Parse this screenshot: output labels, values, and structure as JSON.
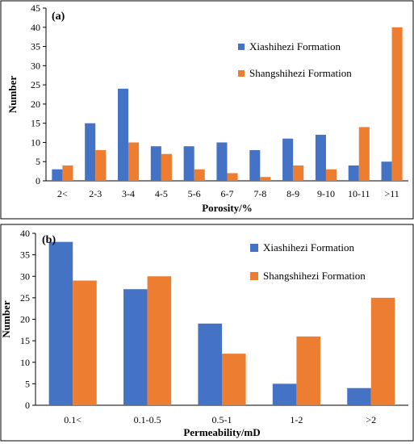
{
  "chart_data": [
    {
      "type": "bar",
      "panel_label": "(a)",
      "categories": [
        "2<",
        "2-3",
        "3-4",
        "4-5",
        "5-6",
        "6-7",
        "7-8",
        "8-9",
        "9-10",
        "10-11",
        ">11"
      ],
      "series": [
        {
          "name": "Xiashihezi Formation",
          "color": "#4472C4",
          "values": [
            3,
            15,
            24,
            9,
            9,
            10,
            8,
            11,
            12,
            4,
            5
          ]
        },
        {
          "name": "Shangshihezi Formation",
          "color": "#ED7D31",
          "values": [
            4,
            8,
            10,
            7,
            3,
            2,
            1,
            4,
            3,
            14,
            40
          ]
        }
      ],
      "xlabel": "Porosity/%",
      "ylabel": "Number",
      "ylim": [
        0,
        45
      ],
      "ytick_step": 5,
      "yticks": [
        "0",
        "5",
        "10",
        "15",
        "20",
        "25",
        "30",
        "35",
        "40",
        "45"
      ],
      "grid": false,
      "legend_position": "top-right"
    },
    {
      "type": "bar",
      "panel_label": "(b)",
      "categories": [
        "0.1<",
        "0.1-0.5",
        "0.5-1",
        "1-2",
        ">2"
      ],
      "series": [
        {
          "name": "Xiashihezi Formation",
          "color": "#4472C4",
          "values": [
            38,
            27,
            19,
            5,
            4
          ]
        },
        {
          "name": "Shangshihezi Formation",
          "color": "#ED7D31",
          "values": [
            29,
            30,
            12,
            16,
            25
          ]
        }
      ],
      "xlabel": "Permeability/mD",
      "ylabel": "Number",
      "ylim": [
        0,
        40
      ],
      "ytick_step": 5,
      "yticks": [
        "0",
        "5",
        "10",
        "15",
        "20",
        "25",
        "30",
        "35",
        "40"
      ],
      "grid": false,
      "legend_position": "top-right"
    }
  ]
}
